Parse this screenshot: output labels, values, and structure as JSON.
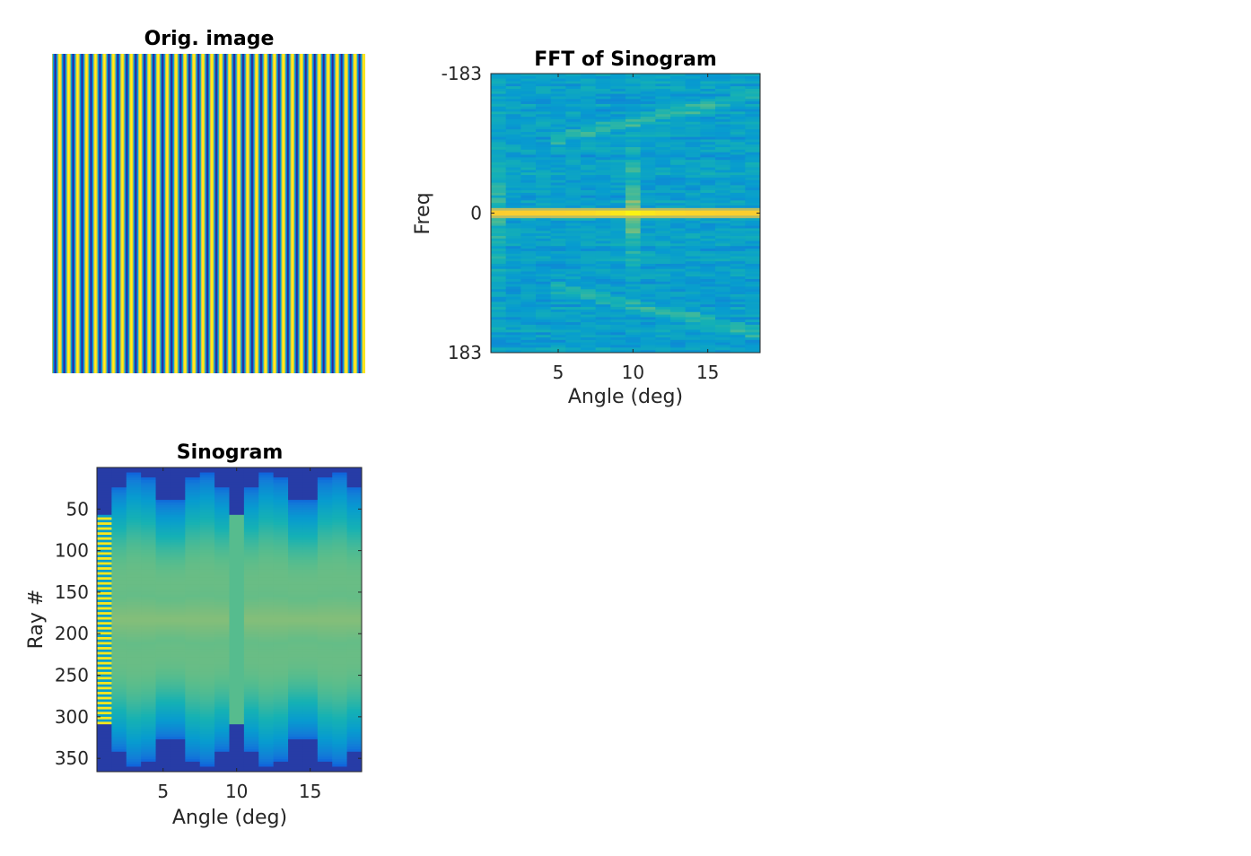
{
  "chart_data": [
    {
      "type": "heatmap",
      "title": "Orig. image",
      "xlabel": "",
      "ylabel": "",
      "axes_visible": false,
      "pattern": "vertical sinusoidal stripes",
      "stripe_count": 35,
      "colormap": "parula"
    },
    {
      "type": "heatmap",
      "title": "FFT of Sinogram",
      "xlabel": "Angle (deg)",
      "ylabel": "Freq",
      "xlim": [
        0.5,
        18.5
      ],
      "ylim": [
        -183,
        183
      ],
      "x_reversed": false,
      "y_reversed": true,
      "x_ticks": [
        5,
        10,
        15
      ],
      "y_ticks": [
        -183,
        0,
        183
      ],
      "x_tick_labels": [
        "5",
        "10",
        "15"
      ],
      "y_tick_labels": [
        "-183",
        "0",
        "183"
      ],
      "angles": 18,
      "peak_row": 0,
      "peak_column": 10,
      "colormap": "parula"
    },
    {
      "type": "heatmap",
      "title": "Sinogram",
      "xlabel": "Angle (deg)",
      "ylabel": "Ray #",
      "xlim": [
        0.5,
        18.5
      ],
      "ylim": [
        0,
        366
      ],
      "y_reversed": true,
      "x_ticks": [
        5,
        10,
        15
      ],
      "y_ticks": [
        50,
        100,
        150,
        200,
        250,
        300,
        350
      ],
      "x_tick_labels": [
        "5",
        "10",
        "15"
      ],
      "y_tick_labels": [
        "50",
        "100",
        "150",
        "200",
        "250",
        "300",
        "350"
      ],
      "angles": 18,
      "colormap": "parula"
    }
  ]
}
